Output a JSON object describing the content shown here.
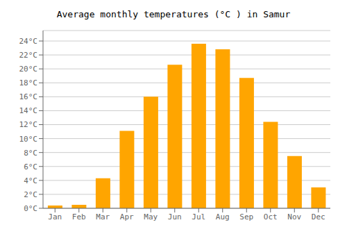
{
  "chart_data": {
    "type": "bar",
    "title": "Average monthly temperatures (°C ) in Samur",
    "categories": [
      "Jan",
      "Feb",
      "Mar",
      "Apr",
      "May",
      "Jun",
      "Jul",
      "Aug",
      "Sep",
      "Oct",
      "Nov",
      "Dec"
    ],
    "values": [
      0.4,
      0.5,
      4.3,
      11.1,
      16.0,
      20.6,
      23.6,
      22.8,
      18.7,
      12.4,
      7.5,
      3.0
    ],
    "color": "#FFA500",
    "ylim": [
      0,
      25.5
    ],
    "yticks": [
      {
        "value": 0,
        "label": "0°C"
      },
      {
        "value": 2,
        "label": "2°C"
      },
      {
        "value": 4,
        "label": "4°C"
      },
      {
        "value": 6,
        "label": "6°C"
      },
      {
        "value": 8,
        "label": "8°C"
      },
      {
        "value": 10,
        "label": "10°C"
      },
      {
        "value": 12,
        "label": "12°C"
      },
      {
        "value": 14,
        "label": "14°C"
      },
      {
        "value": 16,
        "label": "16°C"
      },
      {
        "value": 18,
        "label": "18°C"
      },
      {
        "value": 20,
        "label": "20°C"
      },
      {
        "value": 22,
        "label": "22°C"
      },
      {
        "value": 24,
        "label": "24°C"
      }
    ],
    "grid": true
  }
}
